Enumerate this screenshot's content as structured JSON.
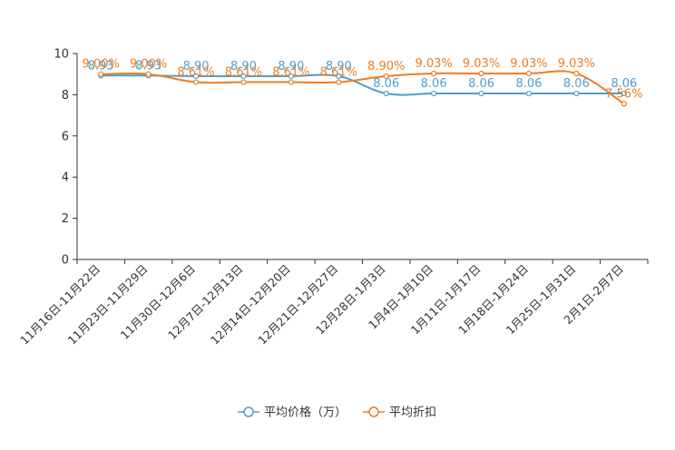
{
  "chart_data": {
    "type": "line",
    "categories": [
      "11月16日-11月22日",
      "11月23日-11月29日",
      "11月30日-12月6日",
      "12月7日-12月13日",
      "12月14日-12月20日",
      "12月21日-12月27日",
      "12月28日-1月3日",
      "1月4日-1月10日",
      "1月11日-1月17日",
      "1月18日-1月24日",
      "1月25日-1月31日",
      "2月1日-2月7日"
    ],
    "ylim": [
      0,
      10
    ],
    "yticks": [
      "0",
      "2",
      "4",
      "6",
      "8",
      "10"
    ],
    "series": [
      {
        "name": "平均价格（万）",
        "color": "#4e9fcb",
        "values": [
          8.93,
          8.93,
          8.9,
          8.9,
          8.9,
          8.9,
          8.06,
          8.06,
          8.06,
          8.06,
          8.06,
          8.06
        ],
        "labels": [
          "8.93",
          "8.93",
          "8.90",
          "8.90",
          "8.90",
          "8.90",
          "8.06",
          "8.06",
          "8.06",
          "8.06",
          "8.06",
          "8.06"
        ]
      },
      {
        "name": "平均折扣",
        "color": "#f07c20",
        "values": [
          9.0,
          9.0,
          8.61,
          8.61,
          8.61,
          8.61,
          8.9,
          9.03,
          9.03,
          9.03,
          9.03,
          7.56
        ],
        "labels": [
          "9.00%",
          "9.00%",
          "8.61%",
          "8.61%",
          "8.61%",
          "8.61%",
          "8.90%",
          "9.03%",
          "9.03%",
          "9.03%",
          "9.03%",
          "7.56%"
        ]
      }
    ],
    "legend_position": "bottom"
  }
}
